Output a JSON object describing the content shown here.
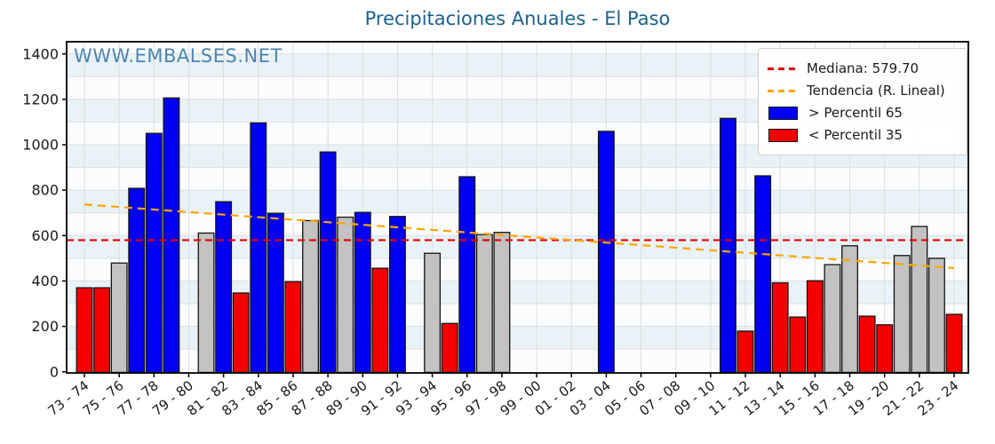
{
  "watermark": "WWW.EMBALSES.NET",
  "colors": {
    "above": "#0000f5",
    "below": "#f50000",
    "mid": "#c2c2c2",
    "bar_edge": "#141414",
    "median_line": "#e60000",
    "trend_line": "#ffa500",
    "title": "#1b618e",
    "watermark": "#3f7ca9",
    "stripe": "#e9f2f7",
    "grid": "#dadfe2",
    "plot_bg": "#fbfcfd",
    "axis": "#000000"
  },
  "chart_data": {
    "type": "bar",
    "title": "Precipitaciones Anuales - El Paso",
    "xlabel": "",
    "ylabel": "",
    "ylim": [
      0,
      1400
    ],
    "yticks": [
      0,
      200,
      400,
      600,
      800,
      1000,
      1200,
      1400
    ],
    "grid": true,
    "legend_position": "upper right",
    "median": 579.7,
    "median_label": "Mediana: 579.70",
    "trend_label": "Tendencia (R. Lineal)",
    "above_label": "> Percentil 65",
    "below_label": "< Percentil 35",
    "trend_line": {
      "start_value": 737,
      "end_value": 457
    },
    "series": [
      {
        "label": "73 - 74",
        "value": 370,
        "band": "below"
      },
      {
        "label": "74 - 75",
        "value": 370,
        "band": "below"
      },
      {
        "label": "75 - 76",
        "value": 479,
        "band": "mid"
      },
      {
        "label": "76 - 77",
        "value": 808,
        "band": "above"
      },
      {
        "label": "77 - 78",
        "value": 1050,
        "band": "above"
      },
      {
        "label": "78 - 79",
        "value": 1206,
        "band": "above"
      },
      {
        "label": "79 - 80",
        "value": null,
        "band": null
      },
      {
        "label": "80 - 81",
        "value": 611,
        "band": "mid"
      },
      {
        "label": "81 - 82",
        "value": 749,
        "band": "above"
      },
      {
        "label": "82 - 83",
        "value": 347,
        "band": "below"
      },
      {
        "label": "83 - 84",
        "value": 1096,
        "band": "above"
      },
      {
        "label": "84 - 85",
        "value": 698,
        "band": "above"
      },
      {
        "label": "85 - 86",
        "value": 397,
        "band": "below"
      },
      {
        "label": "86 - 87",
        "value": 666,
        "band": "mid"
      },
      {
        "label": "87 - 88",
        "value": 968,
        "band": "above"
      },
      {
        "label": "88 - 89",
        "value": 681,
        "band": "mid"
      },
      {
        "label": "89 - 90",
        "value": 702,
        "band": "above"
      },
      {
        "label": "90 - 91",
        "value": 456,
        "band": "below"
      },
      {
        "label": "91 - 92",
        "value": 684,
        "band": "above"
      },
      {
        "label": "92 - 93",
        "value": null,
        "band": null
      },
      {
        "label": "93 - 94",
        "value": 522,
        "band": "mid"
      },
      {
        "label": "94 - 95",
        "value": 213,
        "band": "below"
      },
      {
        "label": "95 - 96",
        "value": 859,
        "band": "above"
      },
      {
        "label": "96 - 97",
        "value": 604,
        "band": "mid"
      },
      {
        "label": "97 - 98",
        "value": 614,
        "band": "mid"
      },
      {
        "label": "98 - 99",
        "value": null,
        "band": null
      },
      {
        "label": "99 - 00",
        "value": null,
        "band": null
      },
      {
        "label": "00 - 01",
        "value": null,
        "band": null
      },
      {
        "label": "01 - 02",
        "value": null,
        "band": null
      },
      {
        "label": "02 - 03",
        "value": null,
        "band": null
      },
      {
        "label": "03 - 04",
        "value": 1059,
        "band": "above"
      },
      {
        "label": "04 - 05",
        "value": null,
        "band": null
      },
      {
        "label": "05 - 06",
        "value": null,
        "band": null
      },
      {
        "label": "06 - 07",
        "value": null,
        "band": null
      },
      {
        "label": "07 - 08",
        "value": null,
        "band": null
      },
      {
        "label": "08 - 09",
        "value": null,
        "band": null
      },
      {
        "label": "09 - 10",
        "value": null,
        "band": null
      },
      {
        "label": "10 - 11",
        "value": 1116,
        "band": "above"
      },
      {
        "label": "11 - 12",
        "value": 179,
        "band": "below"
      },
      {
        "label": "12 - 13",
        "value": 863,
        "band": "above"
      },
      {
        "label": "13 - 14",
        "value": 392,
        "band": "below"
      },
      {
        "label": "14 - 15",
        "value": 241,
        "band": "below"
      },
      {
        "label": "15 - 16",
        "value": 401,
        "band": "below"
      },
      {
        "label": "16 - 17",
        "value": 472,
        "band": "mid"
      },
      {
        "label": "17 - 18",
        "value": 555,
        "band": "mid"
      },
      {
        "label": "18 - 19",
        "value": 245,
        "band": "below"
      },
      {
        "label": "19 - 20",
        "value": 207,
        "band": "below"
      },
      {
        "label": "20 - 21",
        "value": 512,
        "band": "mid"
      },
      {
        "label": "21 - 22",
        "value": 640,
        "band": "mid"
      },
      {
        "label": "22 - 23",
        "value": 500,
        "band": "mid"
      },
      {
        "label": "23 - 24",
        "value": 253,
        "band": "below"
      }
    ]
  }
}
